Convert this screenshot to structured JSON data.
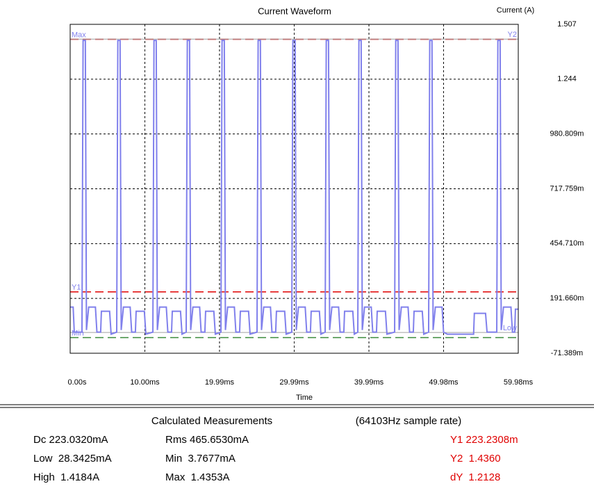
{
  "chart_data": {
    "type": "line",
    "title": "Current Waveform",
    "y_label": "Current (A)",
    "x_label": "Time",
    "xlim": [
      0,
      59.98
    ],
    "xticks": [
      {
        "value": 0,
        "label": "0.00s"
      },
      {
        "value": 10,
        "label": "10.00ms"
      },
      {
        "value": 19.99,
        "label": "19.99ms"
      },
      {
        "value": 29.99,
        "label": "29.99ms"
      },
      {
        "value": 39.99,
        "label": "39.99ms"
      },
      {
        "value": 49.98,
        "label": "49.98ms"
      },
      {
        "value": 59.98,
        "label": "59.98ms"
      }
    ],
    "ylim": [
      -0.071389,
      1.507
    ],
    "yticks": [
      {
        "value": -0.071389,
        "label": "-71.389m"
      },
      {
        "value": 0.19166,
        "label": "191.660m"
      },
      {
        "value": 0.45471,
        "label": "454.710m"
      },
      {
        "value": 0.717759,
        "label": "717.759m"
      },
      {
        "value": 0.980809,
        "label": "980.809m"
      },
      1.244,
      1.507
    ],
    "grid": true,
    "series": [
      {
        "color": "#8080ec",
        "x": [
          0,
          0.4,
          0.55,
          1.2,
          1.58,
          1.73,
          2.03,
          2.18,
          2.48,
          3.38,
          3.58,
          4.08,
          4.18,
          5.28,
          5.48,
          6.23,
          6.38,
          6.68,
          6.83,
          7.13,
          8.03,
          8.23,
          8.73,
          8.83,
          9.93,
          10.13,
          11.07,
          11.22,
          11.52,
          11.67,
          11.97,
          12.87,
          13.07,
          13.57,
          13.67,
          14.77,
          14.97,
          15.53,
          15.68,
          15.98,
          16.13,
          16.43,
          17.33,
          17.53,
          18.03,
          18.13,
          19.23,
          19.43,
          20.18,
          20.33,
          20.63,
          20.78,
          21.08,
          21.98,
          22.18,
          22.68,
          22.78,
          23.88,
          24.08,
          25.01,
          25.16,
          25.46,
          25.61,
          25.91,
          26.81,
          27.01,
          27.51,
          27.61,
          28.71,
          28.91,
          29.66,
          29.81,
          30.11,
          30.26,
          30.56,
          31.46,
          31.66,
          32.16,
          32.26,
          33.36,
          33.56,
          34.13,
          34.28,
          34.58,
          34.73,
          35.03,
          35.93,
          36.13,
          36.63,
          36.73,
          37.83,
          38.03,
          38.5,
          38.65,
          38.95,
          39.1,
          39.4,
          40.3,
          40.5,
          41.0,
          41.1,
          42.2,
          42.4,
          43.43,
          43.58,
          43.88,
          44.03,
          44.33,
          45.23,
          45.43,
          45.93,
          46.03,
          47.13,
          47.33,
          47.98,
          48.13,
          48.43,
          48.58,
          48.88,
          49.78,
          49.98,
          50.48,
          54.0,
          54.1,
          55.6,
          55.8,
          56.8,
          57.1,
          57.25,
          57.55,
          57.7,
          58.0,
          59.0,
          59.2,
          59.5,
          59.6,
          59.98
        ],
        "values": [
          0.15,
          0.15,
          0.03,
          0.03,
          0.03,
          1.43,
          1.43,
          0.04,
          0.15,
          0.15,
          0.03,
          0.03,
          0.13,
          0.13,
          0.02,
          0.03,
          1.43,
          1.43,
          0.04,
          0.15,
          0.15,
          0.03,
          0.03,
          0.13,
          0.13,
          0.02,
          0.03,
          1.43,
          1.43,
          0.04,
          0.15,
          0.15,
          0.03,
          0.03,
          0.13,
          0.13,
          0.02,
          0.03,
          1.43,
          1.43,
          0.04,
          0.15,
          0.15,
          0.03,
          0.03,
          0.13,
          0.13,
          0.02,
          0.03,
          1.43,
          1.43,
          0.04,
          0.15,
          0.15,
          0.03,
          0.03,
          0.13,
          0.13,
          0.02,
          0.03,
          1.43,
          1.43,
          0.04,
          0.15,
          0.15,
          0.03,
          0.03,
          0.13,
          0.13,
          0.02,
          0.03,
          1.43,
          1.43,
          0.04,
          0.15,
          0.15,
          0.03,
          0.03,
          0.13,
          0.13,
          0.02,
          0.03,
          1.43,
          1.43,
          0.04,
          0.15,
          0.15,
          0.03,
          0.03,
          0.13,
          0.13,
          0.02,
          0.03,
          1.43,
          1.43,
          0.04,
          0.15,
          0.15,
          0.03,
          0.03,
          0.13,
          0.13,
          0.02,
          0.03,
          1.43,
          1.43,
          0.04,
          0.15,
          0.15,
          0.03,
          0.03,
          0.13,
          0.13,
          0.02,
          0.03,
          1.43,
          1.43,
          0.04,
          0.15,
          0.15,
          0.03,
          0.02,
          0.02,
          0.12,
          0.12,
          0.03,
          0.03,
          0.03,
          1.43,
          1.43,
          0.04,
          0.15,
          0.15,
          0.03,
          0.03,
          0.14,
          0.14
        ]
      }
    ],
    "reference_lines": [
      {
        "label": "Max",
        "value": 1.4353,
        "color": "#e00000",
        "dash": true,
        "side": "left"
      },
      {
        "label": "Y2",
        "value": 1.436,
        "color": "#a0a0a0",
        "dash": false,
        "side": "right"
      },
      {
        "label": "Y1",
        "value": 0.2232308,
        "color": "#e00000",
        "dash": true,
        "side": "left"
      },
      {
        "label": "Low",
        "value": 0.0283425,
        "color": "#a0a0a0",
        "dash": false,
        "side": "right"
      },
      {
        "label": "Min",
        "value": 0.0037677,
        "color": "#3a8a3a",
        "dash": true,
        "side": "left"
      }
    ]
  },
  "measurements": {
    "title": "Calculated Measurements",
    "sample_rate": "(64103Hz sample rate)",
    "rows": [
      [
        "Dc 223.0320mA",
        "Rms 465.6530mA",
        "Y1 223.2308m"
      ],
      [
        "Low  28.3425mA",
        "Min  3.7677mA",
        "Y2  1.4360"
      ],
      [
        "High  1.4184A",
        "Max  1.4353A",
        "dY  1.2128"
      ]
    ]
  }
}
